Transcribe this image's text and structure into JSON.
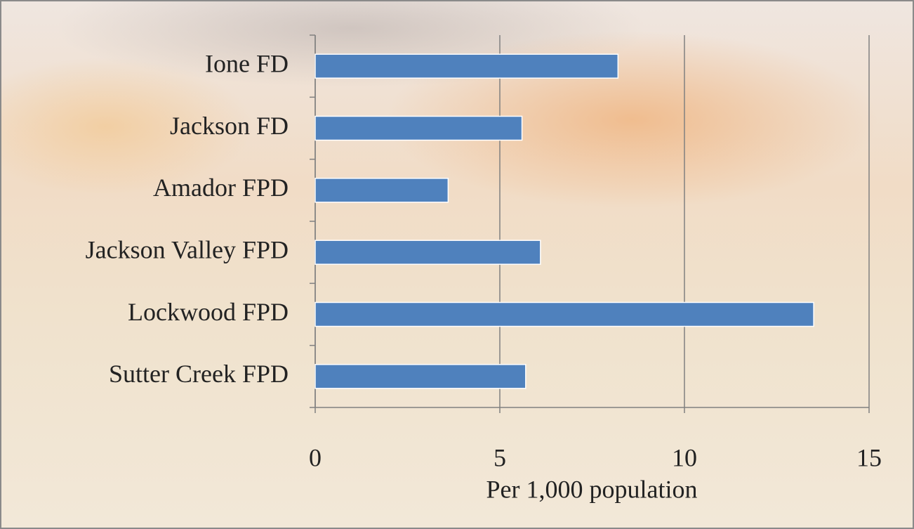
{
  "chart_data": {
    "type": "bar",
    "orientation": "horizontal",
    "x_label": "Per 1,000 population",
    "categories": [
      "Ione FD",
      "Jackson FD",
      "Amador FPD",
      "Jackson Valley FPD",
      "Lockwood FPD",
      "Sutter Creek FPD"
    ],
    "values": [
      8.2,
      5.6,
      3.6,
      6.1,
      13.5,
      5.7
    ],
    "color": "#4f81bd",
    "xlim": [
      0,
      15
    ],
    "xticks": [
      0,
      5,
      10,
      15
    ],
    "grid": true
  }
}
